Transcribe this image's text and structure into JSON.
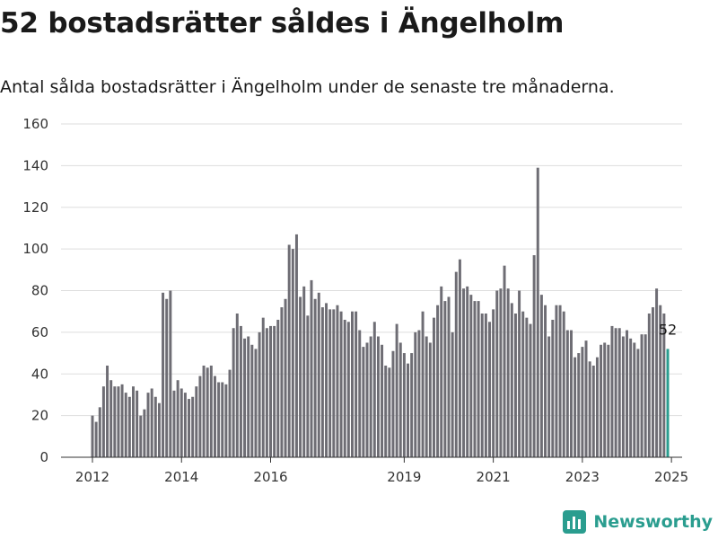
{
  "header": {
    "title": "52 bostadsrätter såldes i Ängelholm",
    "subtitle": "Antal sålda bostadsrätter i Ängelholm under de senaste tre månaderna."
  },
  "brand": {
    "name": "Newsworthy",
    "color": "#2a9d8f",
    "icon": "bar-chart-logo-icon"
  },
  "colors": {
    "bar": "#6e6d74",
    "highlight": "#2a9d8f",
    "grid": "#dddddd",
    "axis": "#333333"
  },
  "chart_data": {
    "type": "bar",
    "start": "2012-01",
    "frequency": "monthly",
    "ylim": [
      0,
      160
    ],
    "yticks": [
      0,
      20,
      40,
      60,
      80,
      100,
      120,
      140,
      160
    ],
    "xtick_labels": [
      "2012",
      "2014",
      "2016",
      "2019",
      "2021",
      "2023",
      "2025"
    ],
    "grid": true,
    "highlight_last": true,
    "last_label": "52",
    "values": [
      20,
      17,
      24,
      34,
      44,
      37,
      34,
      34,
      35,
      31,
      29,
      34,
      32,
      20,
      23,
      31,
      33,
      29,
      26,
      79,
      76,
      80,
      32,
      37,
      33,
      31,
      28,
      29,
      34,
      39,
      44,
      43,
      44,
      39,
      36,
      36,
      35,
      42,
      62,
      69,
      63,
      57,
      58,
      54,
      52,
      60,
      67,
      62,
      63,
      63,
      66,
      72,
      76,
      102,
      100,
      107,
      77,
      82,
      68,
      85,
      76,
      79,
      72,
      74,
      71,
      71,
      73,
      70,
      66,
      65,
      70,
      70,
      61,
      53,
      55,
      58,
      65,
      58,
      54,
      44,
      43,
      51,
      64,
      55,
      50,
      45,
      50,
      60,
      61,
      70,
      58,
      55,
      67,
      73,
      82,
      75,
      77,
      60,
      89,
      95,
      81,
      82,
      78,
      75,
      75,
      69,
      69,
      65,
      71,
      80,
      81,
      92,
      81,
      74,
      69,
      80,
      70,
      67,
      64,
      97,
      139,
      78,
      73,
      58,
      66,
      73,
      73,
      70,
      61,
      61,
      48,
      50,
      53,
      56,
      46,
      44,
      48,
      54,
      55,
      54,
      63,
      62,
      62,
      58,
      61,
      57,
      55,
      52,
      59,
      59,
      69,
      72,
      81,
      73,
      69,
      52
    ],
    "title": "52 bostadsrätter såldes i Ängelholm",
    "xlabel": "",
    "ylabel": ""
  }
}
